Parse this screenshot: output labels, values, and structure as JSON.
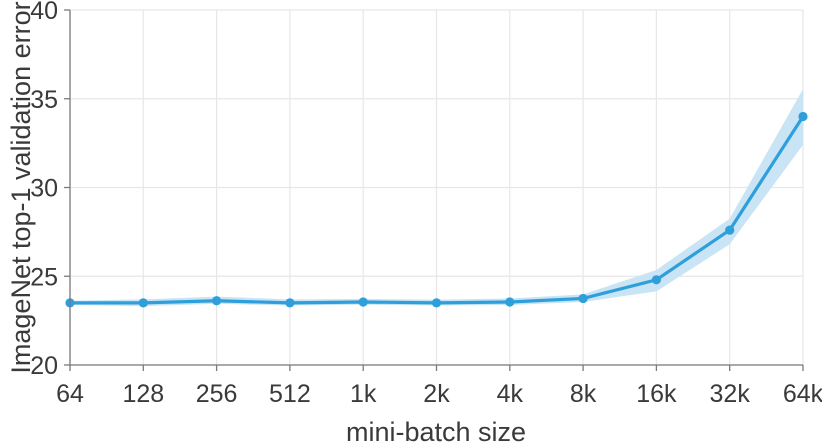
{
  "figure": {
    "background": "#ffffff"
  },
  "chart_data": {
    "type": "line",
    "title": "",
    "xlabel": "mini-batch size",
    "ylabel": "ImageNet top-1 validation error",
    "categories": [
      "64",
      "128",
      "256",
      "512",
      "1k",
      "2k",
      "4k",
      "8k",
      "16k",
      "32k",
      "64k"
    ],
    "series": [
      {
        "name": "ImageNet top-1 validation error",
        "values": [
          23.5,
          23.5,
          23.62,
          23.5,
          23.55,
          23.5,
          23.55,
          23.75,
          24.8,
          27.6,
          34.0
        ],
        "band_lower": [
          23.38,
          23.32,
          23.45,
          23.35,
          23.4,
          23.35,
          23.38,
          23.55,
          24.15,
          26.8,
          32.4
        ],
        "band_upper": [
          23.62,
          23.7,
          23.85,
          23.7,
          23.72,
          23.68,
          23.75,
          23.98,
          25.35,
          28.25,
          35.55
        ]
      }
    ],
    "ylim": [
      20,
      40
    ],
    "yticks": [
      20,
      25,
      30,
      35,
      40
    ],
    "grid": true,
    "legend": "none",
    "colors": {
      "line": "#2E9FDB",
      "marker": "#2E9FDB",
      "band": "#C9E4F5",
      "grid": "#E7E7E7",
      "axis": "#7a7a7a",
      "text": "#3a3a3a"
    }
  }
}
